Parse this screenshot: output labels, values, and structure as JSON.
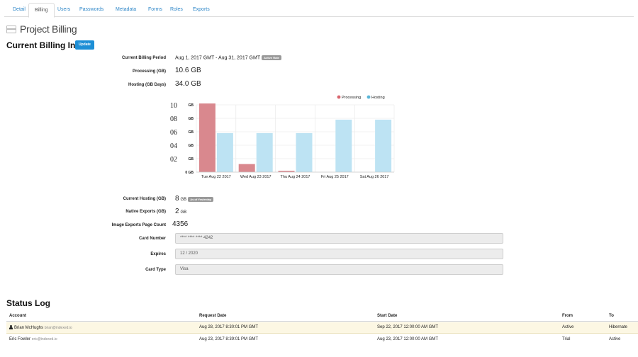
{
  "tabs": [
    "Detail",
    "Billing",
    "Users",
    "Passwords",
    "Metadata",
    "Forms",
    "Roles",
    "Exports"
  ],
  "active_tab": "Billing",
  "page_title": "Project Billing",
  "billing": {
    "section_title": "Current Billing Info",
    "update_label": "Update",
    "period_label": "Current Billing Period",
    "period_value": "Aug 1, 2017 GMT - Aug 31, 2017 GMT",
    "period_badge": "Active Rate",
    "processing_label": "Processing (GB)",
    "processing_value": "10.6 GB",
    "hosting_label": "Hosting (GB Days)",
    "hosting_value": "34.0 GB",
    "current_hosting_label": "Current Hosting (GB)",
    "current_hosting_value": "8",
    "current_hosting_unit": "GB",
    "current_hosting_badge": "As of Yesterday",
    "native_exports_label": "Native Exports (GB)",
    "native_exports_value": "2",
    "native_exports_unit": "GB",
    "image_exports_label": "Image Exports Page Count",
    "image_exports_value": "4356",
    "card_number_label": "Card Number",
    "card_number_value": "**** **** **** 4242",
    "expires_label": "Expires",
    "expires_value": "12 / 2020",
    "card_type_label": "Card Type",
    "card_type_value": "Visa"
  },
  "chart_data": {
    "type": "bar",
    "categories": [
      "Tue Aug 22 2017",
      "Wed Aug 23 2017",
      "Thu Aug 24 2017",
      "Fri Aug 25 2017",
      "Sat Aug 26 2017"
    ],
    "series": [
      {
        "name": "Processing",
        "values": [
          10.2,
          1.2,
          0.2,
          0,
          0
        ],
        "color": "#d9888e"
      },
      {
        "name": "Hosting",
        "values": [
          5.8,
          5.8,
          5.8,
          7.8,
          7.8
        ],
        "color": "#bde3f3"
      }
    ],
    "y_ticks": [
      {
        "value": 0,
        "big": "",
        "unit": "0 GB"
      },
      {
        "value": 2,
        "big": "02",
        "unit": "GB"
      },
      {
        "value": 4,
        "big": "04",
        "unit": "GB"
      },
      {
        "value": 6,
        "big": "06",
        "unit": "GB"
      },
      {
        "value": 8,
        "big": "08",
        "unit": "GB"
      },
      {
        "value": 10,
        "big": "10",
        "unit": "GB"
      }
    ],
    "ylim": [
      0,
      10
    ],
    "legend_position": "top-right",
    "grid": true
  },
  "status_log": {
    "title": "Status Log",
    "columns": [
      "Account",
      "Request Date",
      "Start Date",
      "From",
      "To"
    ],
    "rows": [
      {
        "name": "Brian McHughs",
        "email": "brian@indexed.io",
        "request": "Aug 28, 2017 8:30:01 PM GMT",
        "start": "Sep 22, 2017 12:00:00 AM GMT",
        "from": "Active",
        "to": "Hibernate"
      },
      {
        "name": "Eric Fowler",
        "email": "eric@indexed.io",
        "request": "Aug 23, 2017 8:39:01 PM GMT",
        "start": "Aug 23, 2017 12:00:00 AM GMT",
        "from": "Trial",
        "to": "Active"
      }
    ]
  },
  "colors": {
    "accent": "#1d8fd6",
    "processing": "#d9888e",
    "hosting": "#bde3f3",
    "highlight_row": "#fcf7e3"
  }
}
